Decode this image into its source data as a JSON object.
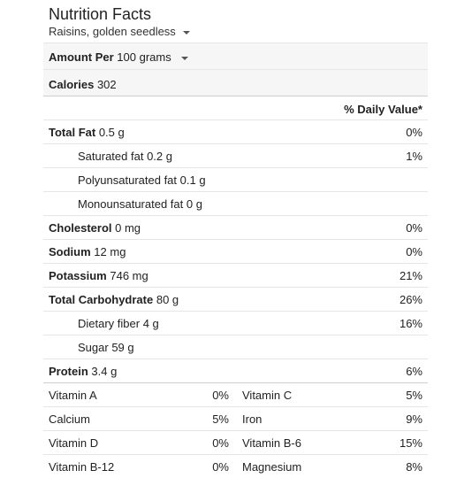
{
  "header": {
    "title": "Nutrition Facts",
    "food_select": "Raisins, golden seedless"
  },
  "amount": {
    "label": "Amount Per",
    "unit_select": "100 grams"
  },
  "calories": {
    "label": "Calories",
    "value": "302"
  },
  "dv_header": "% Daily Value*",
  "nutrients": [
    {
      "label": "Total Fat",
      "value": "0.5 g",
      "dv": "0%"
    },
    {
      "label": "Saturated fat",
      "value": "0.2 g",
      "dv": "1%"
    },
    {
      "label": "Polyunsaturated fat",
      "value": "0.1 g",
      "dv": ""
    },
    {
      "label": "Monounsaturated fat",
      "value": "0 g",
      "dv": ""
    },
    {
      "label": "Cholesterol",
      "value": "0 mg",
      "dv": "0%"
    },
    {
      "label": "Sodium",
      "value": "12 mg",
      "dv": "0%"
    },
    {
      "label": "Potassium",
      "value": "746 mg",
      "dv": "21%"
    },
    {
      "label": "Total Carbohydrate",
      "value": "80 g",
      "dv": "26%"
    },
    {
      "label": "Dietary fiber",
      "value": "4 g",
      "dv": "16%"
    },
    {
      "label": "Sugar",
      "value": "59 g",
      "dv": ""
    },
    {
      "label": "Protein",
      "value": "3.4 g",
      "dv": "6%"
    }
  ],
  "vitamins": [
    {
      "l_name": "Vitamin A",
      "l_dv": "0%",
      "r_name": "Vitamin C",
      "r_dv": "5%"
    },
    {
      "l_name": "Calcium",
      "l_dv": "5%",
      "r_name": "Iron",
      "r_dv": "9%"
    },
    {
      "l_name": "Vitamin D",
      "l_dv": "0%",
      "r_name": "Vitamin B-6",
      "r_dv": "15%"
    },
    {
      "l_name": "Vitamin B-12",
      "l_dv": "0%",
      "r_name": "Magnesium",
      "r_dv": "8%"
    }
  ]
}
